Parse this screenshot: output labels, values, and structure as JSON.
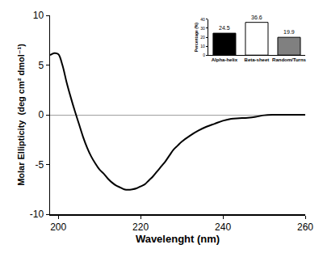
{
  "chart_data": [
    {
      "type": "line",
      "x_label": "Wavelenght (nm)",
      "y_label": "Molar Ellipticity  (deg cm² dmol⁻¹)",
      "x": [
        198,
        199,
        200,
        201,
        202,
        203,
        204,
        205,
        206,
        207,
        208,
        209,
        210,
        211,
        212,
        213,
        214,
        215,
        216,
        217,
        218,
        219,
        220,
        221,
        222,
        223,
        224,
        225,
        226,
        227,
        228,
        229,
        230,
        232,
        234,
        236,
        238,
        240,
        242,
        244,
        246,
        248,
        250,
        252,
        255,
        260
      ],
      "values": [
        6.0,
        6.2,
        6.1,
        5.0,
        3.3,
        1.8,
        0.4,
        -0.9,
        -2.2,
        -3.3,
        -4.2,
        -4.9,
        -5.5,
        -5.9,
        -6.4,
        -6.8,
        -7.1,
        -7.3,
        -7.5,
        -7.55,
        -7.5,
        -7.4,
        -7.2,
        -7.0,
        -6.6,
        -6.2,
        -5.7,
        -5.2,
        -4.7,
        -4.1,
        -3.5,
        -3.1,
        -2.7,
        -2.1,
        -1.6,
        -1.2,
        -0.9,
        -0.6,
        -0.4,
        -0.35,
        -0.3,
        -0.2,
        -0.05,
        0,
        0,
        0
      ],
      "color": "#000000",
      "xlim": [
        198,
        260
      ],
      "xticks": [
        200,
        220,
        240,
        260
      ],
      "ylim": [
        -10,
        10
      ],
      "yticks": [
        -10,
        -5,
        0,
        5,
        10
      ],
      "grid": false
    },
    {
      "type": "bar",
      "y_label": "Percentage (%)",
      "categories": [
        "Alpha-helix",
        "Beta-sheet",
        "Random/Turns"
      ],
      "values": [
        24.5,
        36.6,
        19.9
      ],
      "colors": [
        "#000000",
        "#ffffff",
        "#808080"
      ],
      "ylim": [
        0,
        40
      ],
      "yticks": [
        0,
        10,
        20,
        30,
        40
      ],
      "data_labels": true,
      "grid": false
    }
  ]
}
